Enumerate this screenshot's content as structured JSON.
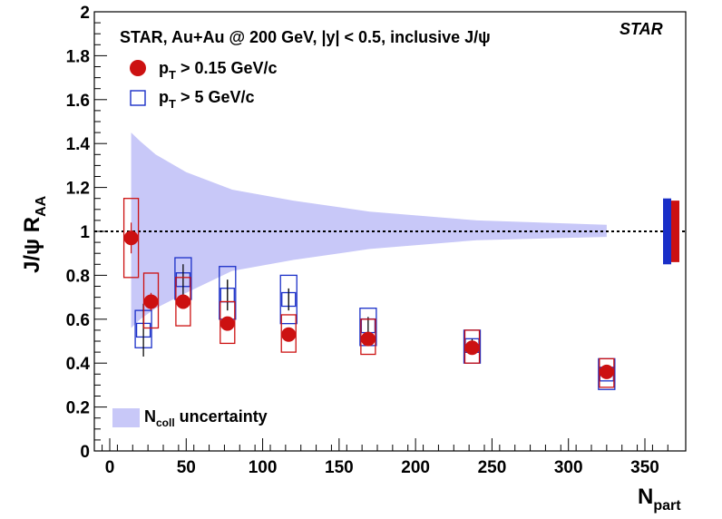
{
  "chart_data": {
    "type": "scatter",
    "title": "STAR, Au+Au @ 200 GeV, |y| < 0.5, inclusive J/ψ",
    "experiment_label": "STAR",
    "xlabel": {
      "main": "N",
      "sub": "part"
    },
    "ylabel": {
      "main": "J/ψ R",
      "sub": "AA"
    },
    "xlim": [
      -10,
      375
    ],
    "ylim": [
      0,
      2
    ],
    "x_ticks": [
      0,
      50,
      100,
      150,
      200,
      250,
      300,
      350
    ],
    "y_ticks": [
      0,
      0.2,
      0.4,
      0.6,
      0.8,
      1,
      1.2,
      1.4,
      1.6,
      1.8,
      2
    ],
    "x_tick_labels": [
      "0",
      "50",
      "100",
      "150",
      "200",
      "250",
      "300",
      "350"
    ],
    "y_tick_labels": [
      "0",
      "0.2",
      "0.4",
      "0.6",
      "0.8",
      "1",
      "1.2",
      "1.4",
      "1.6",
      "1.8",
      "2"
    ],
    "reference_line": 1.0,
    "series": [
      {
        "name": "pT > 0.15 GeV/c",
        "legend_main": "p",
        "legend_sub": "T",
        "legend_rest": " > 0.15 GeV/c",
        "marker": "filled-circle",
        "color": "#cc1111",
        "points": [
          {
            "x": 14,
            "y": 0.97,
            "stat": 0.07,
            "sys_lo": 0.79,
            "sys_hi": 1.15
          },
          {
            "x": 27,
            "y": 0.68,
            "stat": 0.04,
            "sys_lo": 0.56,
            "sys_hi": 0.81
          },
          {
            "x": 48,
            "y": 0.68,
            "stat": 0.03,
            "sys_lo": 0.57,
            "sys_hi": 0.79
          },
          {
            "x": 77,
            "y": 0.58,
            "stat": 0.03,
            "sys_lo": 0.49,
            "sys_hi": 0.68
          },
          {
            "x": 117,
            "y": 0.53,
            "stat": 0.03,
            "sys_lo": 0.45,
            "sys_hi": 0.62
          },
          {
            "x": 169,
            "y": 0.51,
            "stat": 0.03,
            "sys_lo": 0.44,
            "sys_hi": 0.6
          },
          {
            "x": 237,
            "y": 0.47,
            "stat": 0.03,
            "sys_lo": 0.4,
            "sys_hi": 0.55
          },
          {
            "x": 325,
            "y": 0.36,
            "stat": 0.02,
            "sys_lo": 0.29,
            "sys_hi": 0.42
          }
        ]
      },
      {
        "name": "pT > 5 GeV/c",
        "legend_main": "p",
        "legend_sub": "T",
        "legend_rest": " > 5 GeV/c",
        "marker": "open-square",
        "color": "#1a2fc8",
        "points": [
          {
            "x": 22,
            "y": 0.55,
            "stat": 0.12,
            "sys_lo": 0.47,
            "sys_hi": 0.64
          },
          {
            "x": 48,
            "y": 0.78,
            "stat": 0.07,
            "sys_lo": 0.69,
            "sys_hi": 0.88
          },
          {
            "x": 77,
            "y": 0.71,
            "stat": 0.07,
            "sys_lo": 0.6,
            "sys_hi": 0.84
          },
          {
            "x": 117,
            "y": 0.69,
            "stat": 0.05,
            "sys_lo": 0.58,
            "sys_hi": 0.8
          },
          {
            "x": 169,
            "y": 0.57,
            "stat": 0.04,
            "sys_lo": 0.48,
            "sys_hi": 0.65
          },
          {
            "x": 237,
            "y": 0.48,
            "stat": 0.03,
            "sys_lo": 0.4,
            "sys_hi": 0.55
          },
          {
            "x": 325,
            "y": 0.35,
            "stat": 0.02,
            "sys_lo": 0.28,
            "sys_hi": 0.42
          }
        ]
      }
    ],
    "ncoll_band": {
      "label_main": "N",
      "label_sub": "coll",
      "label_rest": " uncertainty",
      "color": "#c8c8f8",
      "x": [
        14,
        20,
        30,
        50,
        80,
        120,
        170,
        240,
        325
      ],
      "high": [
        1.45,
        1.41,
        1.35,
        1.27,
        1.19,
        1.14,
        1.09,
        1.05,
        1.03
      ],
      "low": [
        0.56,
        0.6,
        0.65,
        0.72,
        0.82,
        0.87,
        0.92,
        0.96,
        0.975
      ]
    },
    "global_uncertainty": [
      {
        "series": "pT > 5 GeV/c",
        "color": "#1a2fc8",
        "low": 0.85,
        "high": 1.15
      },
      {
        "series": "pT > 0.15 GeV/c",
        "color": "#cc1111",
        "low": 0.86,
        "high": 1.14
      }
    ]
  }
}
